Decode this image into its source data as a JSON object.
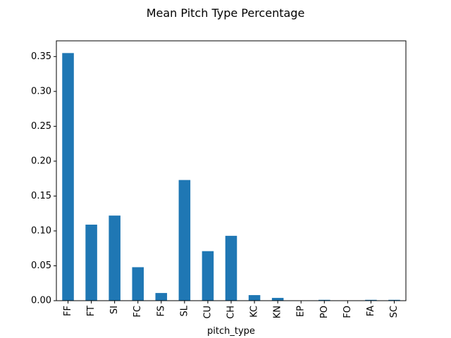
{
  "chart_data": {
    "type": "bar",
    "title": "Mean Pitch Type Percentage",
    "xlabel": "pitch_type",
    "ylabel": "",
    "categories": [
      "FF",
      "FT",
      "SI",
      "FC",
      "FS",
      "SL",
      "CU",
      "CH",
      "KC",
      "KN",
      "EP",
      "PO",
      "FO",
      "FA",
      "SC"
    ],
    "values": [
      0.355,
      0.109,
      0.122,
      0.048,
      0.011,
      0.173,
      0.071,
      0.093,
      0.008,
      0.004,
      0.0003,
      0.0012,
      0.0001,
      0.0012,
      0.0012
    ],
    "ylim": [
      0,
      0.3725
    ],
    "yticks": [
      0.0,
      0.05,
      0.1,
      0.15,
      0.2,
      0.25,
      0.3,
      0.35
    ],
    "ytick_labels": [
      "0.00",
      "0.05",
      "0.10",
      "0.15",
      "0.20",
      "0.25",
      "0.30",
      "0.35"
    ],
    "bar_color": "#1f77b4",
    "grid": false,
    "legend": "none"
  }
}
